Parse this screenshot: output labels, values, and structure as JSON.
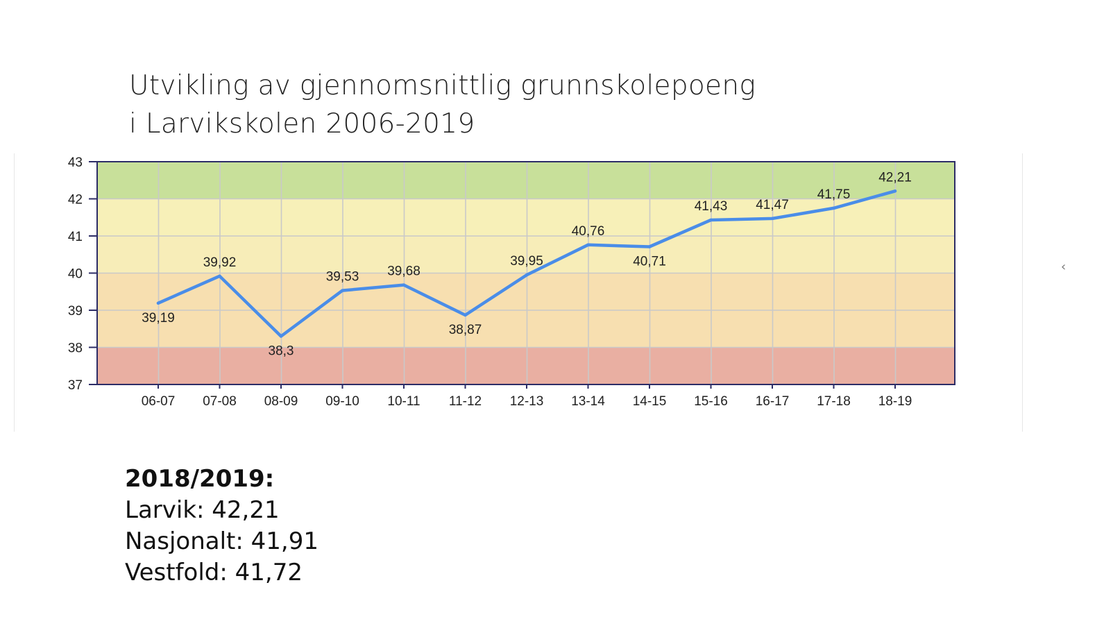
{
  "title": {
    "line1": "Utvikling av gjennomsnittlig grunnskolepoeng",
    "line2": "i Larvikskolen 2006-2019"
  },
  "chart_data": {
    "type": "line",
    "title": "",
    "xlabel": "",
    "ylabel": "",
    "categories": [
      "06-07",
      "07-08",
      "08-09",
      "09-10",
      "10-11",
      "11-12",
      "12-13",
      "13-14",
      "14-15",
      "15-16",
      "16-17",
      "17-18",
      "18-19"
    ],
    "series": [
      {
        "values": [
          39.19,
          39.92,
          38.3,
          39.53,
          39.68,
          38.87,
          39.95,
          40.76,
          40.71,
          41.43,
          41.47,
          41.75,
          42.21
        ],
        "labels": [
          "39,19",
          "39,92",
          "38,3",
          "39,53",
          "39,68",
          "38,87",
          "39,95",
          "40,76",
          "40,71",
          "41,43",
          "41,47",
          "41,75",
          "42,21"
        ],
        "color": "#4a8de8"
      }
    ],
    "ylim": [
      37,
      43
    ],
    "yticks": [
      37,
      38,
      39,
      40,
      41,
      42,
      43
    ],
    "grid": true,
    "bands": [
      {
        "from": 42,
        "to": 43,
        "color": "#c8e09a"
      },
      {
        "from": 41,
        "to": 42,
        "color": "#f7f0b8"
      },
      {
        "from": 40,
        "to": 41,
        "color": "#f7edb8"
      },
      {
        "from": 38,
        "to": 40,
        "color": "#f7dfb0"
      },
      {
        "from": 37,
        "to": 38,
        "color": "#e9afa2"
      }
    ]
  },
  "summary": {
    "heading": "2018/2019:",
    "larvik": "Larvik: 42,21",
    "nasjonalt": "Nasjonalt: 41,91",
    "vestfold": "Vestfold: 41,72"
  },
  "scroll_arrow": "‹"
}
